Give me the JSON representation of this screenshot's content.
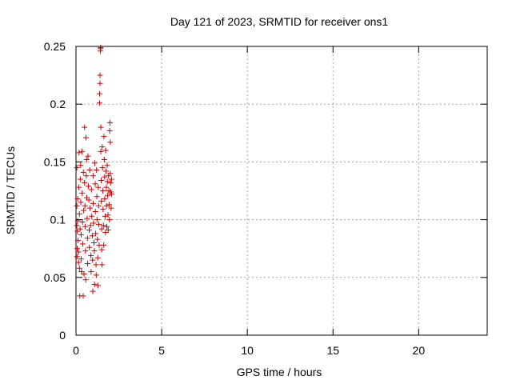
{
  "chart_data": {
    "type": "scatter",
    "title": "Day 121 of 2023, SRMTID for receiver ons1",
    "xlabel": "GPS time / hours",
    "ylabel": "SRMTID / TECUs",
    "xlim": [
      0,
      24
    ],
    "ylim": [
      0,
      0.25
    ],
    "x_ticks": [
      0,
      5,
      10,
      15,
      20
    ],
    "x_tick_labels": [
      "0",
      "5",
      "10",
      "15",
      "20"
    ],
    "y_ticks": [
      0,
      0.05,
      0.1,
      0.15,
      0.2,
      0.25
    ],
    "y_tick_labels": [
      "0",
      "0.05",
      "0.1",
      "0.15",
      "0.2",
      "0.25"
    ],
    "grid": true,
    "marker": "+",
    "series": [
      {
        "name": "SRMTID",
        "color": "#cc0000",
        "points": [
          [
            0.05,
            0.145
          ],
          [
            0.05,
            0.112
          ],
          [
            0.05,
            0.095
          ],
          [
            0.06,
            0.068
          ],
          [
            0.07,
            0.075
          ],
          [
            0.08,
            0.09
          ],
          [
            0.1,
            0.118
          ],
          [
            0.1,
            0.099
          ],
          [
            0.12,
            0.082
          ],
          [
            0.14,
            0.072
          ],
          [
            0.15,
            0.063
          ],
          [
            0.16,
            0.128
          ],
          [
            0.18,
            0.158
          ],
          [
            0.2,
            0.105
          ],
          [
            0.2,
            0.058
          ],
          [
            0.22,
            0.034
          ],
          [
            0.24,
            0.092
          ],
          [
            0.25,
            0.135
          ],
          [
            0.27,
            0.147
          ],
          [
            0.28,
            0.115
          ],
          [
            0.3,
            0.087
          ],
          [
            0.3,
            0.066
          ],
          [
            0.32,
            0.055
          ],
          [
            0.35,
            0.159
          ],
          [
            0.36,
            0.123
          ],
          [
            0.38,
            0.098
          ],
          [
            0.4,
            0.079
          ],
          [
            0.42,
            0.034
          ],
          [
            0.43,
            0.141
          ],
          [
            0.45,
            0.108
          ],
          [
            0.47,
            0.053
          ],
          [
            0.5,
            0.18
          ],
          [
            0.5,
            0.132
          ],
          [
            0.52,
            0.112
          ],
          [
            0.53,
            0.094
          ],
          [
            0.55,
            0.073
          ],
          [
            0.57,
            0.048
          ],
          [
            0.58,
            0.171
          ],
          [
            0.6,
            0.138
          ],
          [
            0.62,
            0.152
          ],
          [
            0.63,
            0.119
          ],
          [
            0.65,
            0.101
          ],
          [
            0.67,
            0.084
          ],
          [
            0.68,
            0.062
          ],
          [
            0.7,
            0.155
          ],
          [
            0.72,
            0.129
          ],
          [
            0.75,
            0.117
          ],
          [
            0.77,
            0.091
          ],
          [
            0.78,
            0.076
          ],
          [
            0.8,
            0.143
          ],
          [
            0.82,
            0.11
          ],
          [
            0.85,
            0.095
          ],
          [
            0.87,
            0.069
          ],
          [
            0.88,
            0.055
          ],
          [
            0.9,
            0.126
          ],
          [
            0.92,
            0.103
          ],
          [
            0.95,
            0.086
          ],
          [
            0.97,
            0.065
          ],
          [
            0.98,
            0.038
          ],
          [
            1.0,
            0.138
          ],
          [
            1.0,
            0.114
          ],
          [
            1.02,
            0.097
          ],
          [
            1.05,
            0.08
          ],
          [
            1.07,
            0.073
          ],
          [
            1.08,
            0.044
          ],
          [
            1.1,
            0.149
          ],
          [
            1.12,
            0.131
          ],
          [
            1.13,
            0.107
          ],
          [
            1.15,
            0.088
          ],
          [
            1.17,
            0.061
          ],
          [
            1.18,
            0.052
          ],
          [
            1.2,
            0.143
          ],
          [
            1.22,
            0.12
          ],
          [
            1.23,
            0.1
          ],
          [
            1.25,
            0.083
          ],
          [
            1.27,
            0.067
          ],
          [
            1.28,
            0.043
          ],
          [
            1.3,
            0.128
          ],
          [
            1.32,
            0.112
          ],
          [
            1.33,
            0.096
          ],
          [
            1.35,
            0.078
          ],
          [
            1.37,
            0.201
          ],
          [
            1.38,
            0.209
          ],
          [
            1.4,
            0.218
          ],
          [
            1.4,
            0.225
          ],
          [
            1.42,
            0.246
          ],
          [
            1.43,
            0.248
          ],
          [
            1.44,
            0.249
          ],
          [
            1.45,
            0.18
          ],
          [
            1.45,
            0.159
          ],
          [
            1.47,
            0.134
          ],
          [
            1.48,
            0.116
          ],
          [
            1.5,
            0.092
          ],
          [
            1.5,
            0.074
          ],
          [
            1.52,
            0.061
          ],
          [
            1.53,
            0.163
          ],
          [
            1.55,
            0.145
          ],
          [
            1.57,
            0.125
          ],
          [
            1.58,
            0.109
          ],
          [
            1.6,
            0.095
          ],
          [
            1.62,
            0.078
          ],
          [
            1.63,
            0.172
          ],
          [
            1.65,
            0.152
          ],
          [
            1.67,
            0.137
          ],
          [
            1.68,
            0.118
          ],
          [
            1.7,
            0.103
          ],
          [
            1.72,
            0.089
          ],
          [
            1.73,
            0.16
          ],
          [
            1.75,
            0.142
          ],
          [
            1.77,
            0.128
          ],
          [
            1.78,
            0.112
          ],
          [
            1.8,
            0.094
          ],
          [
            1.82,
            0.147
          ],
          [
            1.83,
            0.133
          ],
          [
            1.85,
            0.121
          ],
          [
            1.87,
            0.104
          ],
          [
            1.88,
            0.091
          ],
          [
            1.9,
            0.138
          ],
          [
            1.92,
            0.125
          ],
          [
            1.93,
            0.113
          ],
          [
            1.95,
            0.1
          ],
          [
            1.97,
            0.177
          ],
          [
            1.98,
            0.184
          ],
          [
            2.0,
            0.167
          ],
          [
            2.0,
            0.14
          ],
          [
            2.02,
            0.132
          ],
          [
            2.03,
            0.124
          ],
          [
            2.05,
            0.11
          ],
          [
            2.07,
            0.135
          ],
          [
            2.08,
            0.122
          ]
        ]
      }
    ]
  }
}
